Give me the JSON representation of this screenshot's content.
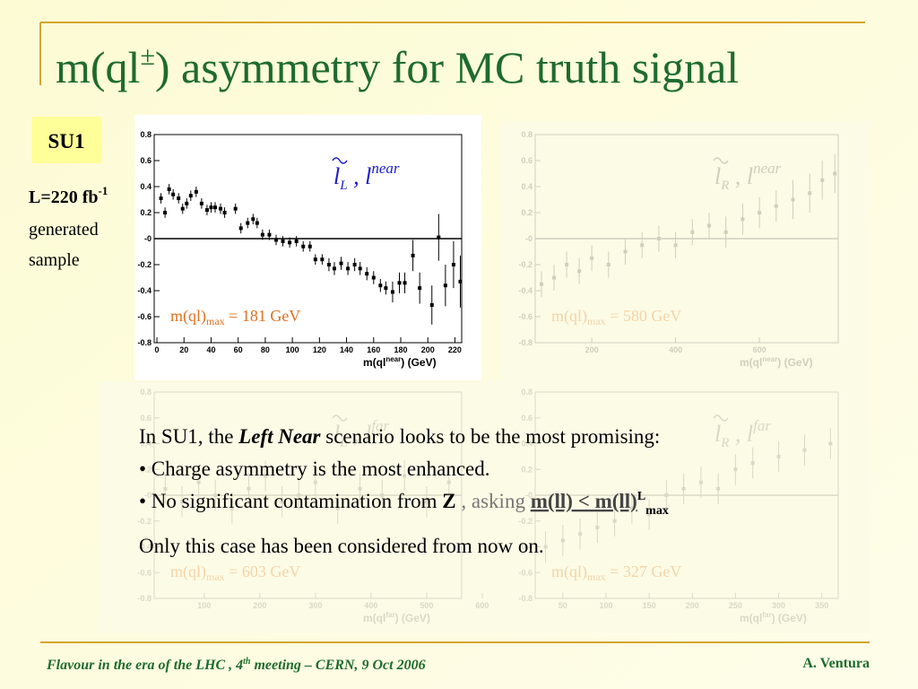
{
  "title": {
    "main": "m(ql",
    "sup": "±",
    "rest": ") asymmetry for MC truth signal"
  },
  "badge": "SU1",
  "sidebar": {
    "lumi": "L=220 fb",
    "lumi_sup": "-1",
    "line2": "generated",
    "line3": "sample"
  },
  "note": {
    "l1a": "In SU1, the ",
    "l1b": "Left Near",
    "l1c": " scenario looks to be the most promising:",
    "l2": "• Charge asymmetry is the most enhanced.",
    "l3a": "• No significant contamination from ",
    "l3b": "Z",
    "l3c": " , asking ",
    "l3d": "m(ll) < m(ll)",
    "l3sup": "L",
    "l3sub": "max",
    "l4": "Only this case has been considered from now on."
  },
  "footer": {
    "left_a": "Flavour in the era of  the LHC , 4",
    "left_sup": "th",
    "left_b": " meeting   –   CERN, 9 Oct 2006",
    "right": "A. Ventura"
  },
  "chart_data": [
    {
      "type": "scatter",
      "color": "#000000",
      "annotation_color": "#e07020",
      "legend": {
        "l": "l",
        "sub": "L",
        "sep": " , l",
        "sup": "near"
      },
      "xlabel": {
        "a": "m(ql",
        "sup": "near",
        "b": ")  (GeV)"
      },
      "annotation": {
        "a": "m(ql)",
        "sub": "max",
        "b": " = 181 GeV"
      },
      "xlim": [
        -2,
        225
      ],
      "ylim": [
        -0.8,
        0.8
      ],
      "xticks": [
        0,
        20,
        40,
        60,
        80,
        100,
        120,
        140,
        160,
        180,
        200,
        220
      ],
      "yticks": [
        0.8,
        0.6,
        0.4,
        0.2,
        {
          "value": 0,
          "label": "-0"
        },
        -0.2,
        -0.4,
        -0.6,
        -0.8
      ],
      "x": [
        3,
        6,
        9,
        12,
        16,
        19,
        22,
        25,
        29,
        33,
        37,
        40,
        43,
        47,
        50,
        58,
        62,
        67,
        71,
        74,
        78,
        83,
        88,
        93,
        98,
        103,
        108,
        113,
        117,
        122,
        127,
        131,
        136,
        141,
        146,
        150,
        155,
        160,
        165,
        169,
        174,
        179,
        183,
        189,
        194,
        203,
        208,
        213,
        219,
        224
      ],
      "values": [
        0.31,
        0.2,
        0.38,
        0.34,
        0.31,
        0.23,
        0.27,
        0.33,
        0.36,
        0.27,
        0.22,
        0.24,
        0.24,
        0.23,
        0.2,
        0.23,
        0.08,
        0.12,
        0.15,
        0.12,
        0.03,
        0.03,
        -0.01,
        -0.02,
        -0.03,
        -0.02,
        -0.06,
        -0.06,
        -0.16,
        -0.16,
        -0.2,
        -0.23,
        -0.19,
        -0.23,
        -0.2,
        -0.23,
        -0.27,
        -0.3,
        -0.36,
        -0.38,
        -0.41,
        -0.34,
        -0.34,
        -0.13,
        -0.38,
        -0.51,
        0.01,
        -0.36,
        -0.2,
        -0.33
      ],
      "errors": [
        0.04,
        0.04,
        0.04,
        0.04,
        0.04,
        0.04,
        0.04,
        0.04,
        0.04,
        0.04,
        0.04,
        0.04,
        0.04,
        0.04,
        0.04,
        0.04,
        0.04,
        0.04,
        0.04,
        0.04,
        0.04,
        0.04,
        0.04,
        0.04,
        0.04,
        0.04,
        0.04,
        0.04,
        0.04,
        0.04,
        0.05,
        0.05,
        0.05,
        0.05,
        0.05,
        0.05,
        0.05,
        0.05,
        0.05,
        0.05,
        0.08,
        0.08,
        0.08,
        0.12,
        0.12,
        0.15,
        0.18,
        0.16,
        0.18,
        0.2
      ]
    },
    {
      "type": "scatter",
      "color": "#cfcfbd",
      "annotation_color": "#f3d4a8",
      "legend": {
        "l": "l",
        "sub": "R",
        "sep": " , l",
        "sup": "near"
      },
      "xlabel": {
        "a": "m(ql",
        "sup": "near",
        "b": ")  (GeV)"
      },
      "annotation": {
        "a": "m(ql)",
        "sub": "max",
        "b": " = 580 GeV"
      },
      "xlim": [
        65,
        788
      ],
      "ylim": [
        -0.8,
        0.8
      ],
      "xticks": [
        200,
        400,
        600
      ],
      "yticks": [
        0.8,
        0.6,
        0.4,
        0.2,
        {
          "value": 0,
          "label": "-0"
        },
        -0.2,
        -0.4,
        -0.6,
        -0.8
      ],
      "x": [
        80,
        110,
        140,
        170,
        200,
        240,
        280,
        320,
        360,
        400,
        440,
        480,
        520,
        560,
        600,
        640,
        680,
        720,
        750,
        780
      ],
      "values": [
        -0.35,
        -0.3,
        -0.2,
        -0.25,
        -0.15,
        -0.2,
        -0.1,
        -0.05,
        0,
        -0.05,
        0.05,
        0.1,
        0.05,
        0.15,
        0.2,
        0.25,
        0.3,
        0.35,
        0.45,
        0.5
      ],
      "errors": [
        0.1,
        0.1,
        0.1,
        0.1,
        0.1,
        0.1,
        0.1,
        0.1,
        0.1,
        0.1,
        0.1,
        0.1,
        0.12,
        0.12,
        0.12,
        0.12,
        0.15,
        0.15,
        0.15,
        0.15
      ]
    },
    {
      "type": "scatter",
      "color": "#d9d9c6",
      "annotation_color": "#f3d4a8",
      "legend": {
        "l": "l",
        "sub": "L",
        "sep": " , l",
        "sup": "far"
      },
      "xlabel": {
        "a": "m(ql",
        "sup": "far",
        "b": ")  (GeV)"
      },
      "annotation": {
        "a": "m(ql)",
        "sub": "max",
        "b": " = 603 GeV"
      },
      "xlim": [
        10,
        563
      ],
      "ylim": [
        -0.8,
        0.8
      ],
      "xticks": [
        100,
        200,
        300,
        400,
        500,
        600
      ],
      "yticks": [
        0.8,
        0.6,
        0.4,
        0.2,
        {
          "value": 0,
          "label": "-0"
        },
        -0.2,
        -0.4,
        -0.6,
        -0.8
      ],
      "x": [
        30,
        60,
        90,
        120,
        150,
        180,
        210,
        240,
        270,
        300,
        340,
        380,
        420,
        460,
        500,
        540
      ],
      "values": [
        0.05,
        -0.05,
        0.1,
        0,
        -0.1,
        0.05,
        0.15,
        -0.05,
        0,
        0.1,
        -0.1,
        0.05,
        0,
        0.15,
        -0.05,
        0.1
      ],
      "errors": [
        0.12,
        0.12,
        0.12,
        0.12,
        0.12,
        0.12,
        0.12,
        0.12,
        0.12,
        0.12,
        0.12,
        0.12,
        0.12,
        0.12,
        0.12,
        0.12
      ]
    },
    {
      "type": "scatter",
      "color": "#d9d9c6",
      "annotation_color": "#f3d4a8",
      "legend": {
        "l": "l",
        "sub": "R",
        "sep": " , l",
        "sup": "far"
      },
      "xlabel": {
        "a": "m(ql",
        "sup": "far",
        "b": ")  (GeV)"
      },
      "annotation": {
        "a": "m(ql)",
        "sub": "max",
        "b": " = 327 GeV"
      },
      "xlim": [
        18,
        369
      ],
      "ylim": [
        -0.8,
        0.8
      ],
      "xticks": [
        50,
        100,
        150,
        200,
        250,
        300,
        350
      ],
      "yticks": [
        0.8,
        0.6,
        0.4,
        0.2,
        {
          "value": 0,
          "label": "-0"
        },
        -0.2,
        -0.4,
        -0.6,
        -0.8
      ],
      "x": [
        30,
        50,
        70,
        90,
        110,
        130,
        150,
        170,
        190,
        210,
        230,
        250,
        270,
        300,
        330,
        360
      ],
      "values": [
        -0.4,
        -0.35,
        -0.3,
        -0.25,
        -0.2,
        -0.1,
        -0.15,
        0,
        0.05,
        0.1,
        0.05,
        0.2,
        0.25,
        0.3,
        0.35,
        0.4
      ],
      "errors": [
        0.12,
        0.12,
        0.12,
        0.12,
        0.12,
        0.12,
        0.12,
        0.12,
        0.12,
        0.12,
        0.12,
        0.12,
        0.12,
        0.12,
        0.12,
        0.12
      ]
    }
  ]
}
